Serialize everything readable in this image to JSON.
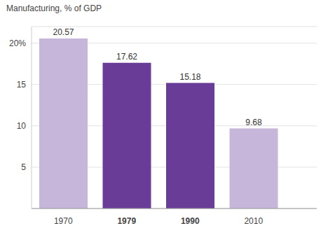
{
  "chart_data": {
    "type": "bar",
    "title": "Manufacturing, % of GDP",
    "categories": [
      "1970",
      "1979",
      "1990",
      "2010"
    ],
    "values": [
      20.57,
      17.62,
      15.18,
      9.68
    ],
    "colors": [
      "#c6b7da",
      "#683c97",
      "#683c97",
      "#c6b7da"
    ],
    "ylim": [
      0,
      22
    ],
    "yticks": [
      5,
      10,
      15,
      {
        "value": 20,
        "label": "20%"
      }
    ],
    "grid": true,
    "data_labels": true
  }
}
